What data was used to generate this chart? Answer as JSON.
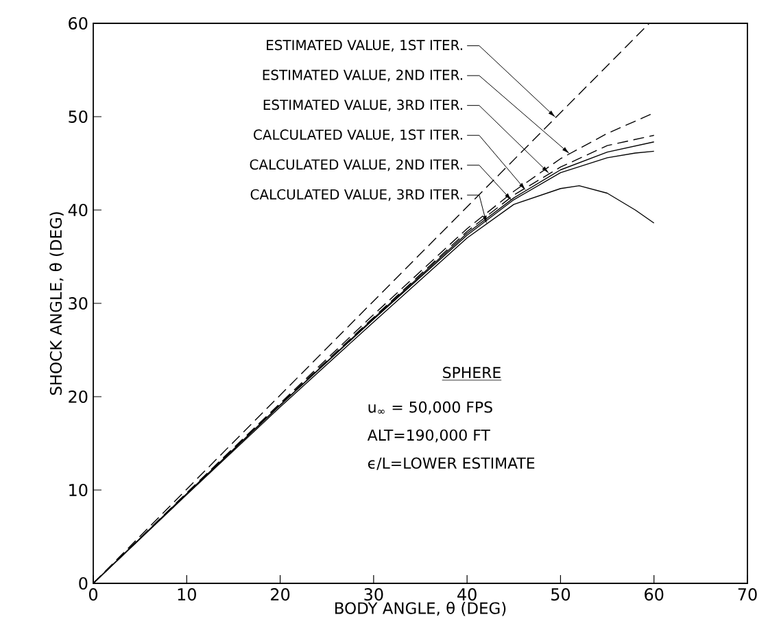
{
  "chart_data": {
    "type": "line",
    "xlabel": "BODY ANGLE, θ (DEG)",
    "ylabel": "SHOCK ANGLE, θ (DEG)",
    "xlim": [
      0,
      70
    ],
    "ylim": [
      0,
      60
    ],
    "xticks": [
      0,
      10,
      20,
      30,
      40,
      50,
      60,
      70
    ],
    "yticks": [
      0,
      10,
      20,
      30,
      40,
      50,
      60
    ],
    "marker": "none",
    "series": [
      {
        "color": "#000000",
        "line_style": "dashed",
        "x": [
          0,
          59.5
        ],
        "values": [
          0,
          60
        ]
      },
      {
        "color": "#000000",
        "line_style": "dashed",
        "x": [
          0,
          10,
          20,
          30,
          40,
          45,
          50,
          55,
          60
        ],
        "values": [
          0,
          9.7,
          19.3,
          28.8,
          38.0,
          42.0,
          45.5,
          48.2,
          50.4
        ]
      },
      {
        "color": "#000000",
        "line_style": "dashed",
        "x": [
          0,
          10,
          20,
          30,
          40,
          45,
          50,
          55,
          60
        ],
        "values": [
          0,
          9.6,
          19.2,
          28.5,
          37.7,
          41.6,
          44.6,
          46.9,
          48.0
        ]
      },
      {
        "color": "#000000",
        "line_style": "solid",
        "x": [
          0,
          10,
          20,
          30,
          40,
          45,
          50,
          55,
          60
        ],
        "values": [
          0,
          9.6,
          19.1,
          28.4,
          37.5,
          41.3,
          44.3,
          46.2,
          47.3
        ]
      },
      {
        "color": "#000000",
        "line_style": "solid",
        "x": [
          0,
          10,
          20,
          30,
          40,
          45,
          50,
          55,
          58,
          60
        ],
        "values": [
          0,
          9.6,
          19.1,
          28.3,
          37.3,
          41.1,
          44.0,
          45.6,
          46.1,
          46.3
        ]
      },
      {
        "color": "#000000",
        "line_style": "solid",
        "x": [
          0,
          10,
          20,
          30,
          40,
          45,
          50,
          52,
          55,
          58,
          60
        ],
        "values": [
          0,
          9.5,
          18.9,
          28.0,
          37.0,
          40.6,
          42.3,
          42.6,
          41.8,
          40.0,
          38.6
        ]
      }
    ],
    "annotations": [
      {
        "text": "ESTIMATED VALUE, 1ST ITER.",
        "x": 49.5,
        "y": 49.9
      },
      {
        "text": "ESTIMATED VALUE, 2ND ITER.",
        "x": 51.0,
        "y": 46.0
      },
      {
        "text": "ESTIMATED VALUE, 3RD ITER.",
        "x": 48.8,
        "y": 43.9
      },
      {
        "text": "CALCULATED VALUE, 1ST ITER.",
        "x": 46.3,
        "y": 42.1
      },
      {
        "text": "CALCULATED VALUE, 2ND ITER.",
        "x": 44.8,
        "y": 41.0
      },
      {
        "text": "CALCULATED VALUE, 3RD ITER.",
        "x": 42.1,
        "y": 38.5
      },
      "SPHERE",
      "u$_{∞}$ = 50,000 FPS",
      "ALT=190,000 FT",
      "ϵ/L=LOWER ESTIMATE"
    ]
  }
}
